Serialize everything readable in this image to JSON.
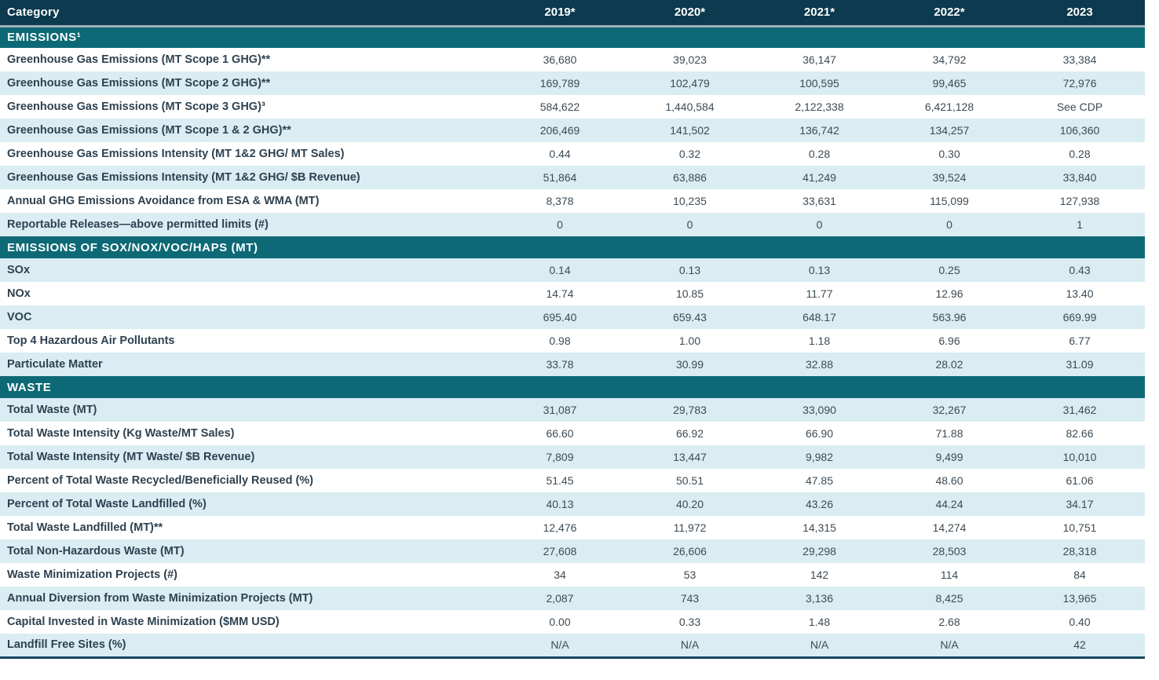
{
  "colors": {
    "header_bg": "#0c3a4f",
    "section_bg": "#0d6975",
    "row_alt_bg": "#d9edf2",
    "row_bg": "#ffffff",
    "header_separator": "#a2b1b9",
    "bottom_rule": "#17465f",
    "label_text": "#2e4150",
    "value_text": "#3d4b55"
  },
  "table": {
    "columns": [
      "Category",
      "2019*",
      "2020*",
      "2021*",
      "2022*",
      "2023"
    ],
    "sections": [
      {
        "title": "EMISSIONS¹",
        "rows": [
          {
            "label": "Greenhouse Gas Emissions (MT Scope 1 GHG)**",
            "values": [
              "36,680",
              "39,023",
              "36,147",
              "34,792",
              "33,384"
            ]
          },
          {
            "label": "Greenhouse Gas Emissions (MT Scope 2 GHG)**",
            "values": [
              "169,789",
              "102,479",
              "100,595",
              "99,465",
              "72,976"
            ]
          },
          {
            "label": "Greenhouse Gas Emissions (MT Scope 3 GHG)³",
            "values": [
              "584,622",
              "1,440,584",
              "2,122,338",
              "6,421,128",
              "See CDP"
            ]
          },
          {
            "label": "Greenhouse Gas Emissions (MT Scope 1 & 2 GHG)**",
            "values": [
              "206,469",
              "141,502",
              "136,742",
              "134,257",
              "106,360"
            ]
          },
          {
            "label": "Greenhouse Gas Emissions Intensity (MT 1&2 GHG/ MT Sales)",
            "values": [
              "0.44",
              "0.32",
              "0.28",
              "0.30",
              "0.28"
            ]
          },
          {
            "label": "Greenhouse Gas Emissions Intensity (MT 1&2 GHG/ $B Revenue)",
            "values": [
              "51,864",
              "63,886",
              "41,249",
              "39,524",
              "33,840"
            ]
          },
          {
            "label": "Annual GHG Emissions Avoidance from ESA & WMA (MT)",
            "values": [
              "8,378",
              "10,235",
              "33,631",
              "115,099",
              "127,938"
            ]
          },
          {
            "label": "Reportable Releases—above permitted limits (#)",
            "values": [
              "0",
              "0",
              "0",
              "0",
              "1"
            ]
          }
        ]
      },
      {
        "title": "EMISSIONS OF SOX/NOX/VOC/HAPS (MT)",
        "rows": [
          {
            "label": "SOx",
            "values": [
              "0.14",
              "0.13",
              "0.13",
              "0.25",
              "0.43"
            ]
          },
          {
            "label": "NOx",
            "values": [
              "14.74",
              "10.85",
              "11.77",
              "12.96",
              "13.40"
            ]
          },
          {
            "label": "VOC",
            "values": [
              "695.40",
              "659.43",
              "648.17",
              "563.96",
              "669.99"
            ]
          },
          {
            "label": "Top 4 Hazardous Air Pollutants",
            "values": [
              "0.98",
              "1.00",
              "1.18",
              "6.96",
              "6.77"
            ]
          },
          {
            "label": "Particulate Matter",
            "values": [
              "33.78",
              "30.99",
              "32.88",
              "28.02",
              "31.09"
            ]
          }
        ]
      },
      {
        "title": "WASTE",
        "rows": [
          {
            "label": "Total Waste (MT)",
            "values": [
              "31,087",
              "29,783",
              "33,090",
              "32,267",
              "31,462"
            ]
          },
          {
            "label": "Total Waste Intensity (Kg Waste/MT Sales)",
            "values": [
              "66.60",
              "66.92",
              "66.90",
              "71.88",
              "82.66"
            ]
          },
          {
            "label": "Total Waste Intensity (MT Waste/ $B Revenue)",
            "values": [
              "7,809",
              "13,447",
              "9,982",
              "9,499",
              "10,010"
            ]
          },
          {
            "label": "Percent of Total Waste Recycled/Beneficially Reused (%)",
            "values": [
              "51.45",
              "50.51",
              "47.85",
              "48.60",
              "61.06"
            ]
          },
          {
            "label": "Percent of Total Waste Landfilled (%)",
            "values": [
              "40.13",
              "40.20",
              "43.26",
              "44.24",
              "34.17"
            ]
          },
          {
            "label": "Total Waste Landfilled (MT)**",
            "values": [
              "12,476",
              "11,972",
              "14,315",
              "14,274",
              "10,751"
            ]
          },
          {
            "label": "Total Non-Hazardous Waste (MT)",
            "values": [
              "27,608",
              "26,606",
              "29,298",
              "28,503",
              "28,318"
            ]
          },
          {
            "label": "Waste Minimization Projects (#)",
            "values": [
              "34",
              "53",
              "142",
              "114",
              "84"
            ]
          },
          {
            "label": "Annual Diversion from Waste Minimization Projects (MT)",
            "values": [
              "2,087",
              "743",
              "3,136",
              "8,425",
              "13,965"
            ]
          },
          {
            "label": "Capital Invested in Waste Minimization ($MM USD)",
            "values": [
              "0.00",
              "0.33",
              "1.48",
              "2.68",
              "0.40"
            ]
          },
          {
            "label": "Landfill Free Sites (%)",
            "values": [
              "N/A",
              "N/A",
              "N/A",
              "N/A",
              "42"
            ]
          }
        ]
      }
    ]
  }
}
